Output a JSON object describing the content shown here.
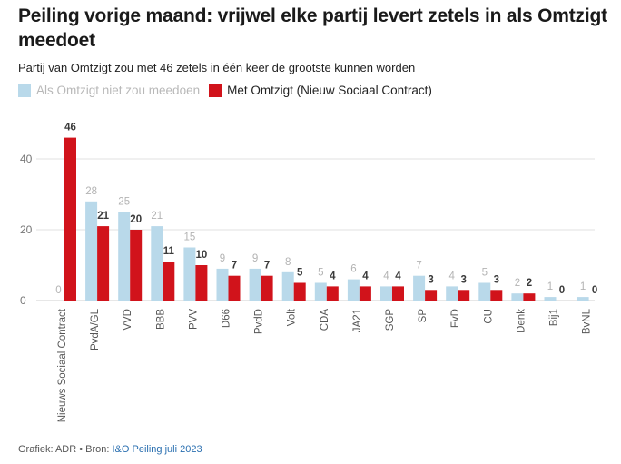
{
  "title": "Peiling vorige maand: vrijwel elke partij levert zetels in als Omtzigt meedoet",
  "subtitle": "Partij van Omtzigt zou met 46 zetels in één keer de grootste kunnen worden",
  "colors": {
    "light": "#b9d9ea",
    "dark": "#d1131b",
    "light_label": "#b3b3b3",
    "dark_label": "#3a3a3a",
    "grid": "#e2e2e2"
  },
  "footer": {
    "prefix": "Grafiek: ADR • Bron: ",
    "source": "I&O Peiling juli 2023"
  },
  "chart_data": {
    "type": "bar",
    "categories": [
      "Nieuws Sociaal Contract",
      "PvdA/GL",
      "VVD",
      "BBB",
      "PVV",
      "D66",
      "PvdD",
      "Volt",
      "CDA",
      "JA21",
      "SGP",
      "SP",
      "FvD",
      "CU",
      "Denk",
      "Bij1",
      "BvNL"
    ],
    "series": [
      {
        "name": "Als Omtzigt niet zou meedoen",
        "values": [
          0,
          28,
          25,
          21,
          15,
          9,
          9,
          8,
          5,
          6,
          4,
          7,
          4,
          5,
          2,
          1,
          1
        ]
      },
      {
        "name": "Met Omtzigt (Nieuw Sociaal Contract)",
        "values": [
          46,
          21,
          20,
          11,
          10,
          7,
          7,
          5,
          4,
          4,
          4,
          3,
          3,
          3,
          2,
          0,
          0
        ]
      }
    ],
    "yticks": [
      "0",
      "20",
      "40"
    ],
    "ylim": [
      0,
      50
    ],
    "xlabel": "",
    "ylabel": "",
    "grid": true,
    "legend": "top-left"
  }
}
